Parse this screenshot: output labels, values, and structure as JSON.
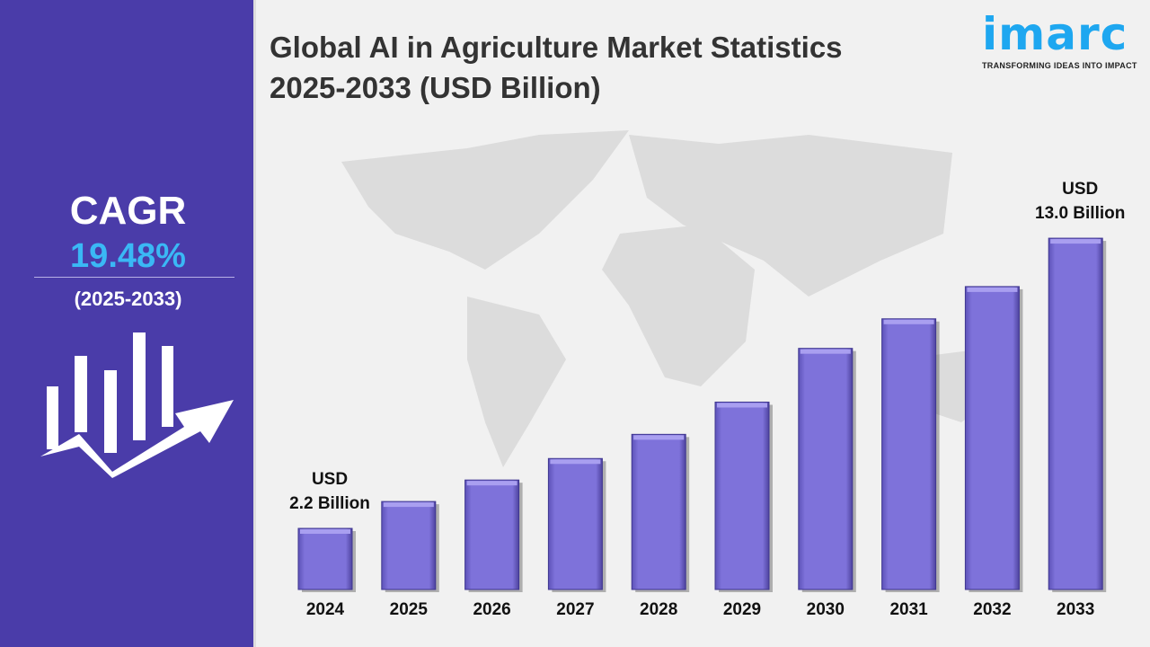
{
  "title_line1": "Global AI in Agriculture Market Statistics",
  "title_line2": "2025-2033 (USD Billion)",
  "logo": {
    "text": "imarc",
    "tagline": "TRANSFORMING IDEAS INTO IMPACT",
    "color": "#1ea7f0"
  },
  "cagr": {
    "label": "CAGR",
    "value": "19.48%",
    "period": "(2025-2033)"
  },
  "colors": {
    "panel": "#4a3ca9",
    "bar": "#7b6fd6",
    "cagr_value": "#3ab8f5"
  },
  "chart_data": {
    "type": "bar",
    "title": "Global AI in Agriculture Market Statistics 2025-2033 (USD Billion)",
    "categories": [
      "2024",
      "2025",
      "2026",
      "2027",
      "2028",
      "2029",
      "2030",
      "2031",
      "2032",
      "2033"
    ],
    "values": [
      2.2,
      3.2,
      4.0,
      4.8,
      5.7,
      6.9,
      8.9,
      10.0,
      11.2,
      13.0
    ],
    "annotations": [
      {
        "category": "2024",
        "line1": "USD",
        "line2": "2.2 Billion"
      },
      {
        "category": "2033",
        "line1": "USD",
        "line2": "13.0 Billion"
      }
    ],
    "grid": false,
    "legend": "none"
  }
}
